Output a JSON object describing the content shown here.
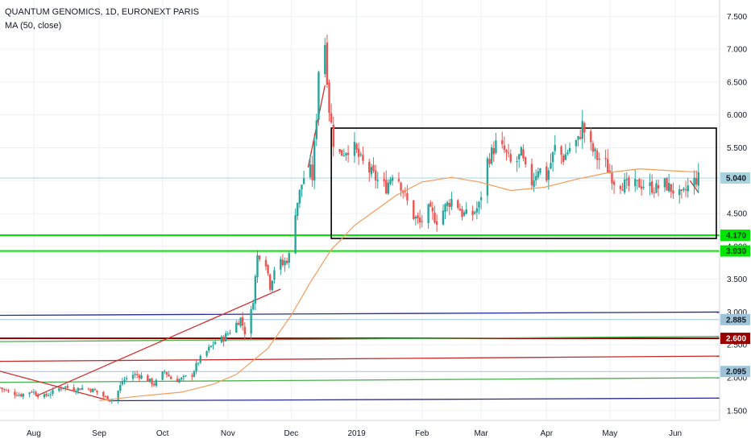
{
  "header": {
    "title": "QUANTUM GENOMICS, 1D, EURONEXT PARIS",
    "indicator": "MA (50, close)"
  },
  "chart_data": {
    "type": "candlestick",
    "symbol": "QUANTUM GENOMICS",
    "interval": "1D",
    "exchange": "EURONEXT PARIS",
    "indicator": "MA (50, close)",
    "ylim": [
      1.35,
      7.75
    ],
    "y_ticks": [
      "1.500",
      "2.000",
      "2.500",
      "3.000",
      "3.500",
      "4.000",
      "4.500",
      "5.000",
      "5.500",
      "6.000",
      "6.500",
      "7.000",
      "7.500"
    ],
    "x_range": [
      "2018-07-16",
      "2019-06-22"
    ],
    "x_ticks": [
      {
        "label": "Aug",
        "date": "2018-08-01"
      },
      {
        "label": "Sep",
        "date": "2018-09-01"
      },
      {
        "label": "Oct",
        "date": "2018-10-01"
      },
      {
        "label": "Nov",
        "date": "2018-11-01"
      },
      {
        "label": "Dec",
        "date": "2018-12-01"
      },
      {
        "label": "2019",
        "date": "2019-01-01"
      },
      {
        "label": "Feb",
        "date": "2019-02-01"
      },
      {
        "label": "Mar",
        "date": "2019-03-01"
      },
      {
        "label": "Apr",
        "date": "2019-04-01"
      },
      {
        "label": "May",
        "date": "2019-05-01"
      },
      {
        "label": "Jun",
        "date": "2019-06-01"
      }
    ],
    "price_points": [
      [
        "2018-07-16",
        1.85
      ],
      [
        "2018-07-20",
        1.78
      ],
      [
        "2018-07-26",
        1.74
      ],
      [
        "2018-07-31",
        1.8
      ],
      [
        "2018-08-05",
        1.7
      ],
      [
        "2018-08-10",
        1.78
      ],
      [
        "2018-08-15",
        1.87
      ],
      [
        "2018-08-20",
        1.82
      ],
      [
        "2018-08-25",
        1.85
      ],
      [
        "2018-08-30",
        1.8
      ],
      [
        "2018-09-04",
        1.7
      ],
      [
        "2018-09-08",
        1.65
      ],
      [
        "2018-09-12",
        1.95
      ],
      [
        "2018-09-17",
        2.05
      ],
      [
        "2018-09-22",
        2.02
      ],
      [
        "2018-09-27",
        1.9
      ],
      [
        "2018-10-02",
        2.1
      ],
      [
        "2018-10-06",
        1.95
      ],
      [
        "2018-10-10",
        1.98
      ],
      [
        "2018-10-15",
        2.05
      ],
      [
        "2018-10-18",
        2.25
      ],
      [
        "2018-10-22",
        2.4
      ],
      [
        "2018-10-26",
        2.55
      ],
      [
        "2018-10-30",
        2.6
      ],
      [
        "2018-11-03",
        2.75
      ],
      [
        "2018-11-07",
        2.9
      ],
      [
        "2018-11-10",
        2.6
      ],
      [
        "2018-11-13",
        3.2
      ],
      [
        "2018-11-15",
        3.85
      ],
      [
        "2018-11-18",
        3.95
      ],
      [
        "2018-11-21",
        3.4
      ],
      [
        "2018-11-24",
        3.8
      ],
      [
        "2018-11-27",
        3.72
      ],
      [
        "2018-11-30",
        3.85
      ],
      [
        "2018-12-03",
        4.55
      ],
      [
        "2018-12-06",
        4.95
      ],
      [
        "2018-12-09",
        5.25
      ],
      [
        "2018-12-11",
        5.05
      ],
      [
        "2018-12-13",
        6.0
      ],
      [
        "2018-12-15",
        7.4
      ],
      [
        "2018-12-17",
        7.1
      ],
      [
        "2018-12-19",
        6.1
      ],
      [
        "2018-12-22",
        5.35
      ],
      [
        "2018-12-26",
        5.45
      ],
      [
        "2018-12-30",
        5.55
      ],
      [
        "2019-01-03",
        5.3
      ],
      [
        "2019-01-07",
        5.15
      ],
      [
        "2019-01-11",
        5.0
      ],
      [
        "2019-01-15",
        4.9
      ],
      [
        "2019-01-19",
        5.2
      ],
      [
        "2019-01-23",
        4.85
      ],
      [
        "2019-01-27",
        4.5
      ],
      [
        "2019-01-31",
        4.35
      ],
      [
        "2019-02-04",
        4.55
      ],
      [
        "2019-02-08",
        4.4
      ],
      [
        "2019-02-12",
        4.6
      ],
      [
        "2019-02-16",
        4.75
      ],
      [
        "2019-02-20",
        4.5
      ],
      [
        "2019-02-24",
        4.45
      ],
      [
        "2019-02-28",
        4.62
      ],
      [
        "2019-03-04",
        5.3
      ],
      [
        "2019-03-08",
        5.55
      ],
      [
        "2019-03-12",
        5.45
      ],
      [
        "2019-03-16",
        5.2
      ],
      [
        "2019-03-20",
        5.4
      ],
      [
        "2019-03-24",
        4.9
      ],
      [
        "2019-03-28",
        5.2
      ],
      [
        "2019-04-01",
        5.05
      ],
      [
        "2019-04-05",
        5.5
      ],
      [
        "2019-04-09",
        5.35
      ],
      [
        "2019-04-13",
        5.55
      ],
      [
        "2019-04-16",
        5.6
      ],
      [
        "2019-04-18",
        5.85
      ],
      [
        "2019-04-21",
        5.55
      ],
      [
        "2019-04-25",
        5.35
      ],
      [
        "2019-04-29",
        5.25
      ],
      [
        "2019-05-03",
        5.0
      ],
      [
        "2019-05-07",
        4.95
      ],
      [
        "2019-05-11",
        4.9
      ],
      [
        "2019-05-15",
        4.95
      ],
      [
        "2019-05-19",
        4.92
      ],
      [
        "2019-05-23",
        4.88
      ],
      [
        "2019-05-27",
        4.95
      ],
      [
        "2019-05-31",
        4.85
      ],
      [
        "2019-06-04",
        4.75
      ],
      [
        "2019-06-08",
        4.95
      ],
      [
        "2019-06-12",
        5.04
      ]
    ],
    "moving_average": [
      [
        "2018-09-01",
        1.65
      ],
      [
        "2018-09-20",
        1.72
      ],
      [
        "2018-10-10",
        1.78
      ],
      [
        "2018-10-25",
        1.9
      ],
      [
        "2018-11-05",
        2.05
      ],
      [
        "2018-11-20",
        2.45
      ],
      [
        "2018-12-01",
        2.95
      ],
      [
        "2018-12-10",
        3.45
      ],
      [
        "2018-12-20",
        3.95
      ],
      [
        "2018-12-31",
        4.32
      ],
      [
        "2019-01-10",
        4.55
      ],
      [
        "2019-01-20",
        4.78
      ],
      [
        "2019-02-01",
        4.98
      ],
      [
        "2019-02-15",
        5.05
      ],
      [
        "2019-02-28",
        4.98
      ],
      [
        "2019-03-15",
        4.85
      ],
      [
        "2019-03-31",
        4.9
      ],
      [
        "2019-04-15",
        5.02
      ],
      [
        "2019-04-30",
        5.12
      ],
      [
        "2019-05-15",
        5.18
      ],
      [
        "2019-05-31",
        5.15
      ],
      [
        "2019-06-12",
        5.13
      ]
    ],
    "horizontal_levels": [
      {
        "price": 4.17,
        "color": "#00e600",
        "width": 2,
        "dates": [
          "2018-07-16",
          "2019-06-22"
        ]
      },
      {
        "price": 3.93,
        "color": "#00e600",
        "width": 2,
        "dates": [
          "2018-07-16",
          "2019-06-22"
        ]
      },
      {
        "price": 5.04,
        "color": "#a7d4de",
        "width": 1,
        "dates": [
          "2018-07-16",
          "2019-06-22"
        ]
      },
      {
        "price": 2.885,
        "color": "#9fc3d9",
        "width": 1,
        "dates": [
          "2018-07-16",
          "2019-06-22"
        ]
      },
      {
        "price": 2.095,
        "color": "#9fc3d9",
        "width": 1,
        "dates": [
          "2018-07-16",
          "2019-06-22"
        ]
      },
      {
        "price": 2.6,
        "color": "#990000",
        "width": 2,
        "dates": [
          "2018-07-16",
          "2019-06-22"
        ]
      }
    ],
    "trend_lines": [
      {
        "color": "#2a2a8f",
        "points": [
          [
            "2018-07-16",
            2.95
          ],
          [
            "2019-06-22",
            3.0
          ]
        ]
      },
      {
        "color": "#4caf50",
        "points": [
          [
            "2018-07-16",
            2.55
          ],
          [
            "2019-06-22",
            2.63
          ]
        ]
      },
      {
        "color": "#c62828",
        "points": [
          [
            "2018-07-16",
            2.25
          ],
          [
            "2019-06-22",
            2.33
          ]
        ]
      },
      {
        "color": "#4caf50",
        "points": [
          [
            "2018-07-16",
            1.93
          ],
          [
            "2019-06-22",
            2.0
          ]
        ]
      },
      {
        "color": "#2a2a8f",
        "points": [
          [
            "2018-09-06",
            1.65
          ],
          [
            "2019-06-22",
            1.69
          ]
        ]
      },
      {
        "color": "#d32f2f",
        "points": [
          [
            "2018-08-02",
            1.72
          ],
          [
            "2018-11-26",
            3.35
          ]
        ]
      },
      {
        "color": "#d32f2f",
        "points": [
          [
            "2018-07-16",
            2.1
          ],
          [
            "2018-09-06",
            1.65
          ]
        ]
      },
      {
        "color": "#d32f2f",
        "points": [
          [
            "2018-12-09",
            5.2
          ],
          [
            "2018-12-17",
            6.45
          ]
        ]
      },
      {
        "color": "#d32f2f",
        "points": [
          [
            "2019-06-08",
            5.0
          ],
          [
            "2019-06-12",
            4.82
          ]
        ]
      }
    ],
    "rectangle": {
      "dates": [
        "2018-12-20",
        "2019-06-22"
      ],
      "prices": [
        4.12,
        5.8
      ]
    },
    "price_labels": [
      {
        "text": "5.040",
        "price": 5.04,
        "bg": "#a7d4de",
        "fg": "#131722"
      },
      {
        "text": "4.170",
        "price": 4.17,
        "bg": "#00e600",
        "fg": "#0a3d0a"
      },
      {
        "text": "3.930",
        "price": 3.93,
        "bg": "#00e600",
        "fg": "#0a3d0a"
      },
      {
        "text": "2.885",
        "price": 2.885,
        "bg": "#9fc3d9",
        "fg": "#131722"
      },
      {
        "text": "2.600",
        "price": 2.6,
        "bg": "#990000",
        "fg": "#ffffff"
      },
      {
        "text": "2.095",
        "price": 2.095,
        "bg": "#9fc3d9",
        "fg": "#131722"
      }
    ],
    "colors": {
      "up": "#26a69a",
      "down": "#ef5350",
      "ma": "#f39c5a",
      "grid": "#edf0f4",
      "axis_text": "#131722"
    }
  }
}
